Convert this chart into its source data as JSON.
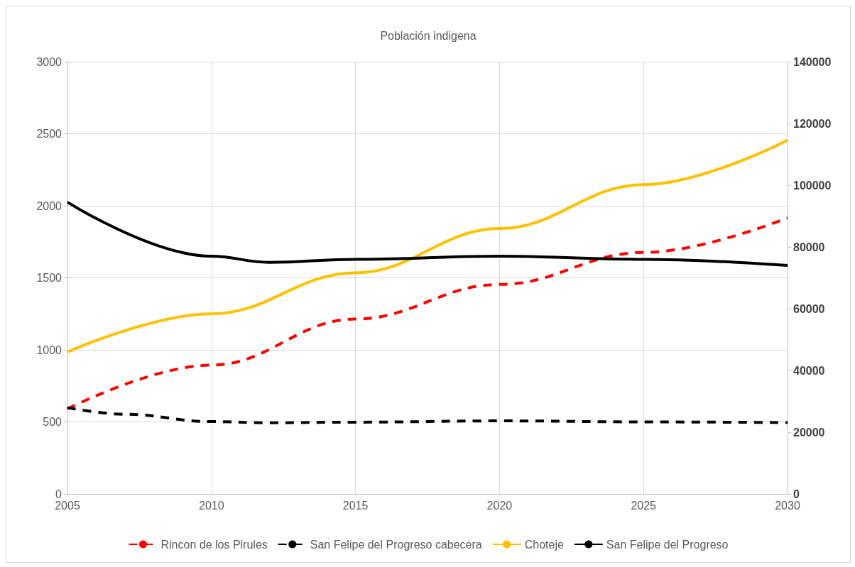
{
  "chart_data": {
    "type": "line",
    "title": "Población indigena",
    "x": [
      2005,
      2007,
      2010,
      2012,
      2015,
      2020,
      2025,
      2030
    ],
    "xlim": [
      2005,
      2030
    ],
    "xticks": [
      2005,
      2010,
      2015,
      2020,
      2025,
      2030
    ],
    "ylim": [
      0,
      3000
    ],
    "yticks": [
      0,
      500,
      1000,
      1500,
      2000,
      2500,
      3000
    ],
    "y2lim": [
      0,
      140000
    ],
    "y2ticks": [
      0,
      20000,
      40000,
      60000,
      80000,
      100000,
      120000,
      140000
    ],
    "grid": true,
    "legend": "bottom",
    "marker": "none",
    "series": [
      {
        "name": "Rincon de los Pirules",
        "color": "#ff0000",
        "line_style": "dashed",
        "values": [
          590,
          null,
          894,
          null,
          1214,
          1454,
          1676,
          1916
        ]
      },
      {
        "name": "San Felipe del Progreso cabecera",
        "color": "#000000",
        "line_style": "dashed",
        "values": [
          599,
          553,
          502,
          494,
          498,
          507,
          500,
          495
        ]
      },
      {
        "name": "Choteje",
        "color": "#ffc000",
        "line_style": "solid",
        "values": [
          985,
          null,
          1250,
          null,
          1535,
          1842,
          2147,
          2456
        ]
      },
      {
        "name": "San Felipe del Progreso",
        "color": "#000000",
        "line_style": "solid",
        "axis": "y2",
        "values": [
          94500,
          null,
          77000,
          75000,
          76000,
          77000,
          76000,
          74000
        ]
      }
    ]
  }
}
